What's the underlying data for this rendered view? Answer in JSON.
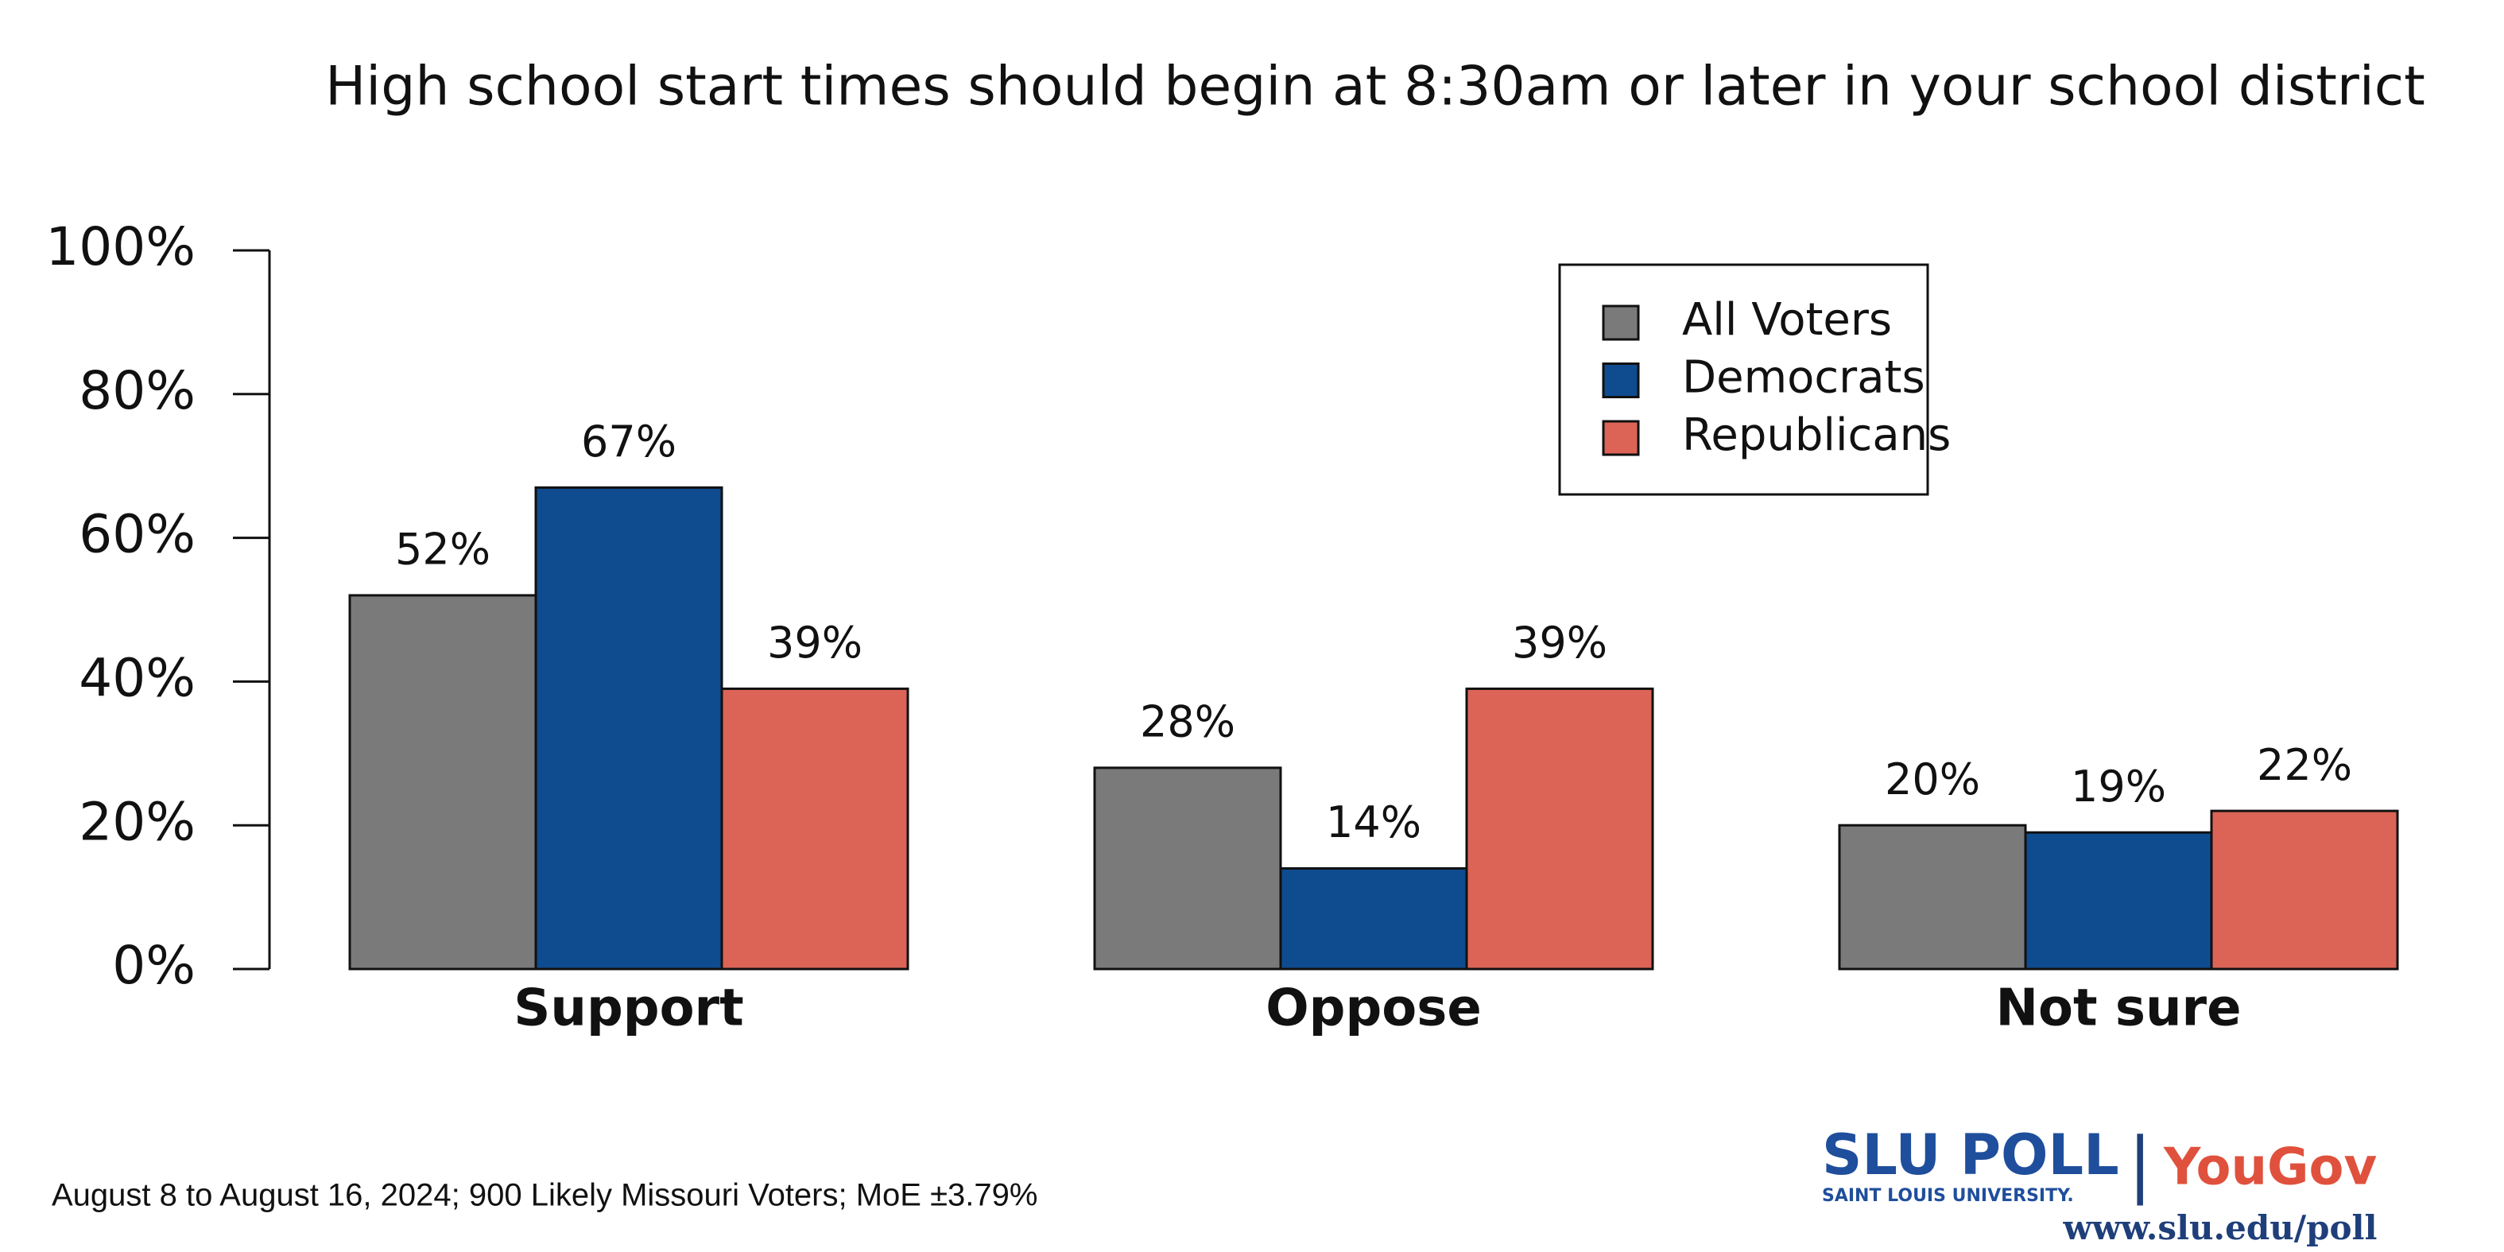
{
  "chart_data": {
    "type": "bar",
    "title": "High school start times should begin at 8:30am or later in your school district",
    "categories": [
      "Support",
      "Oppose",
      "Not sure"
    ],
    "series": [
      {
        "name": "All Voters",
        "color": "#7a7a7a",
        "values": [
          52,
          28,
          20
        ],
        "value_labels": [
          "52%",
          "28%",
          "20%"
        ]
      },
      {
        "name": "Democrats",
        "color": "#0f4c8f",
        "values": [
          67,
          14,
          19
        ],
        "value_labels": [
          "67%",
          "14%",
          "19%"
        ]
      },
      {
        "name": "Republicans",
        "color": "#dc6457",
        "values": [
          39,
          39,
          22
        ],
        "value_labels": [
          "39%",
          "39%",
          "22%"
        ]
      }
    ],
    "ylim": [
      0,
      100
    ],
    "yticks": [
      {
        "value": 0,
        "label": "0%"
      },
      {
        "value": 20,
        "label": "20%"
      },
      {
        "value": 40,
        "label": "40%"
      },
      {
        "value": 60,
        "label": "60%"
      },
      {
        "value": 80,
        "label": "80%"
      },
      {
        "value": 100,
        "label": "100%"
      }
    ],
    "legend": "top-right"
  },
  "footer": {
    "note": "August 8 to August 16, 2024; 900 Likely Missouri Voters; MoE ±3.79%",
    "logo": {
      "name": "SLU POLL",
      "university": "SAINT LOUIS UNIVERSITY.",
      "separator": "|",
      "partner": "YouGov",
      "url": "www.slu.edu/poll"
    }
  }
}
